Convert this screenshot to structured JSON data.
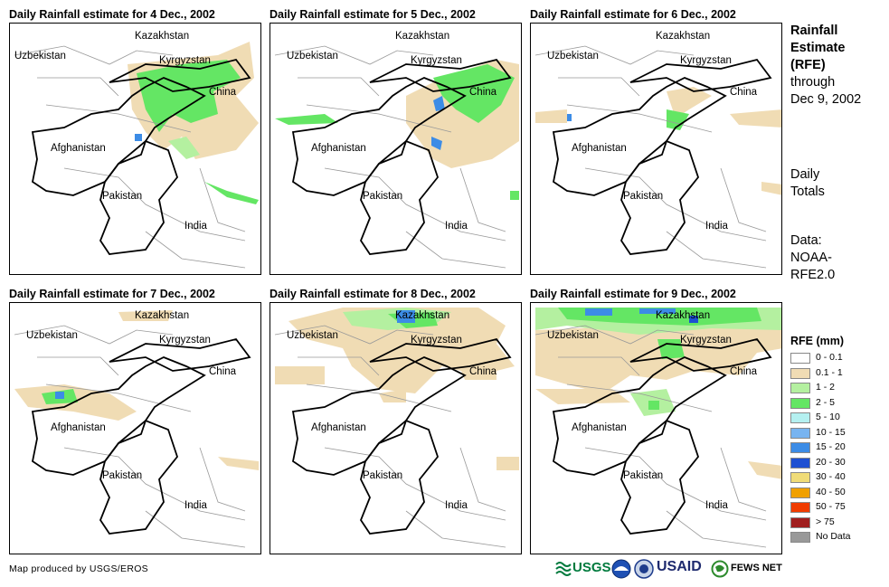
{
  "panels": [
    {
      "title": "Daily Rainfall estimate for 4 Dec., 2002"
    },
    {
      "title": "Daily Rainfall estimate for 5 Dec., 2002"
    },
    {
      "title": "Daily Rainfall estimate for 6 Dec., 2002"
    },
    {
      "title": "Daily Rainfall estimate for 7 Dec., 2002"
    },
    {
      "title": "Daily Rainfall estimate for 8 Dec., 2002"
    },
    {
      "title": "Daily Rainfall estimate for 9 Dec., 2002"
    }
  ],
  "map_labels": {
    "kazakhstan": "Kazakhstan",
    "uzbekistan": "Uzbekistan",
    "kyrgyzstan": "Kyrgyzstan",
    "china": "China",
    "afghanistan": "Afghanistan",
    "pakistan": "Pakistan",
    "india": "India"
  },
  "side": {
    "title_lines": [
      "Rainfall",
      "Estimate",
      "(RFE)"
    ],
    "through_lines": [
      "through",
      "Dec 9, 2002"
    ],
    "period_lines": [
      "Daily",
      "Totals"
    ],
    "data_lines": [
      "Data:",
      "NOAA-",
      "RFE2.0"
    ]
  },
  "legend": {
    "title": "RFE (mm)",
    "items": [
      {
        "label": "0 - 0.1",
        "color": "#ffffff"
      },
      {
        "label": "0.1 - 1",
        "color": "#f0dcb4"
      },
      {
        "label": "1 - 2",
        "color": "#b4f0a0"
      },
      {
        "label": "2 - 5",
        "color": "#64e664"
      },
      {
        "label": "5 - 10",
        "color": "#b4f0f0"
      },
      {
        "label": "10 - 15",
        "color": "#78b4f0"
      },
      {
        "label": "15 - 20",
        "color": "#3c8ce6"
      },
      {
        "label": "20 - 30",
        "color": "#1e50d2"
      },
      {
        "label": "30 - 40",
        "color": "#f0dc78"
      },
      {
        "label": "40 - 50",
        "color": "#f0a000"
      },
      {
        "label": "50 - 75",
        "color": "#f03c00"
      },
      {
        "label": "> 75",
        "color": "#a01e1e"
      },
      {
        "label": "No Data",
        "color": "#999999"
      }
    ]
  },
  "credit": "Map produced by USGS/EROS",
  "logos": {
    "usgs": "USGS",
    "usaid": "USAID",
    "fewsnet": "FEWS NET"
  }
}
